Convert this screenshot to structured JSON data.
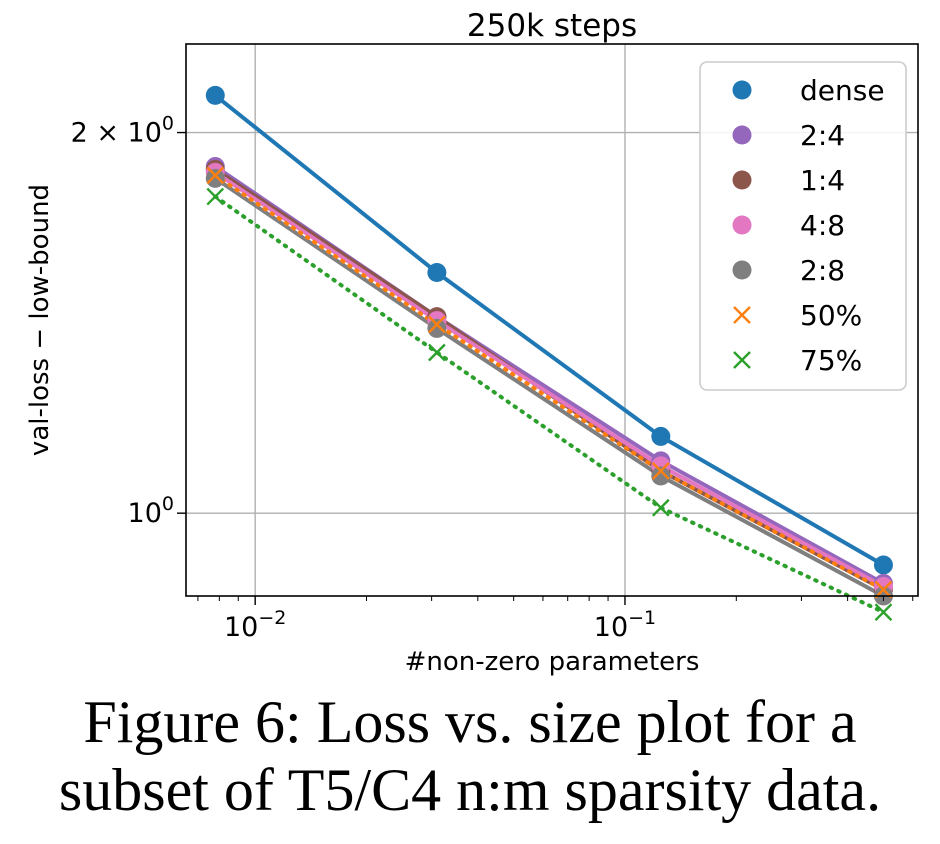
{
  "chart_data": {
    "type": "line",
    "title": "250k steps",
    "xlabel": "#non-zero parameters",
    "ylabel": "val-loss − low-bound",
    "xscale": "log",
    "yscale": "log",
    "xlim": [
      0.0065,
      0.62
    ],
    "ylim": [
      0.86,
      2.35
    ],
    "grid": true,
    "legend_position": "upper right",
    "x_ticks": [
      {
        "value": 0.01,
        "base": "10",
        "exp": "−2"
      },
      {
        "value": 0.1,
        "base": "10",
        "exp": "−1"
      }
    ],
    "y_ticks": [
      {
        "value": 1.0,
        "base": "10",
        "exp": "0",
        "mult": ""
      },
      {
        "value": 2.0,
        "base": "10",
        "exp": "0",
        "mult": "2 × "
      }
    ],
    "x": [
      0.0078,
      0.031,
      0.125,
      0.5
    ],
    "series": [
      {
        "name": "dense",
        "values": [
          2.14,
          1.55,
          1.15,
          0.91
        ],
        "color": "#1f77b4",
        "marker": "circle",
        "style": "solid"
      },
      {
        "name": "2:4",
        "values": [
          1.88,
          1.43,
          1.1,
          0.88
        ],
        "color": "#9467bd",
        "marker": "circle",
        "style": "solid"
      },
      {
        "name": "1:4",
        "values": [
          1.87,
          1.43,
          1.08,
          0.87
        ],
        "color": "#8c564b",
        "marker": "circle",
        "style": "solid"
      },
      {
        "name": "4:8",
        "values": [
          1.86,
          1.42,
          1.09,
          0.875
        ],
        "color": "#e377c2",
        "marker": "circle",
        "style": "solid"
      },
      {
        "name": "2:8",
        "values": [
          1.84,
          1.4,
          1.07,
          0.86
        ],
        "color": "#7f7f7f",
        "marker": "circle",
        "style": "solid"
      },
      {
        "name": "50%",
        "values": [
          1.85,
          1.41,
          1.08,
          0.87
        ],
        "color": "#ff7f0e",
        "marker": "x",
        "style": "dotted"
      },
      {
        "name": "75%",
        "values": [
          1.78,
          1.34,
          1.01,
          0.835
        ],
        "color": "#2ca02c",
        "marker": "x",
        "style": "dotted"
      }
    ]
  },
  "caption": {
    "line1": "Figure 6:  Loss vs.  size plot for a",
    "line2": "subset of T5/C4 n:m sparsity data."
  }
}
